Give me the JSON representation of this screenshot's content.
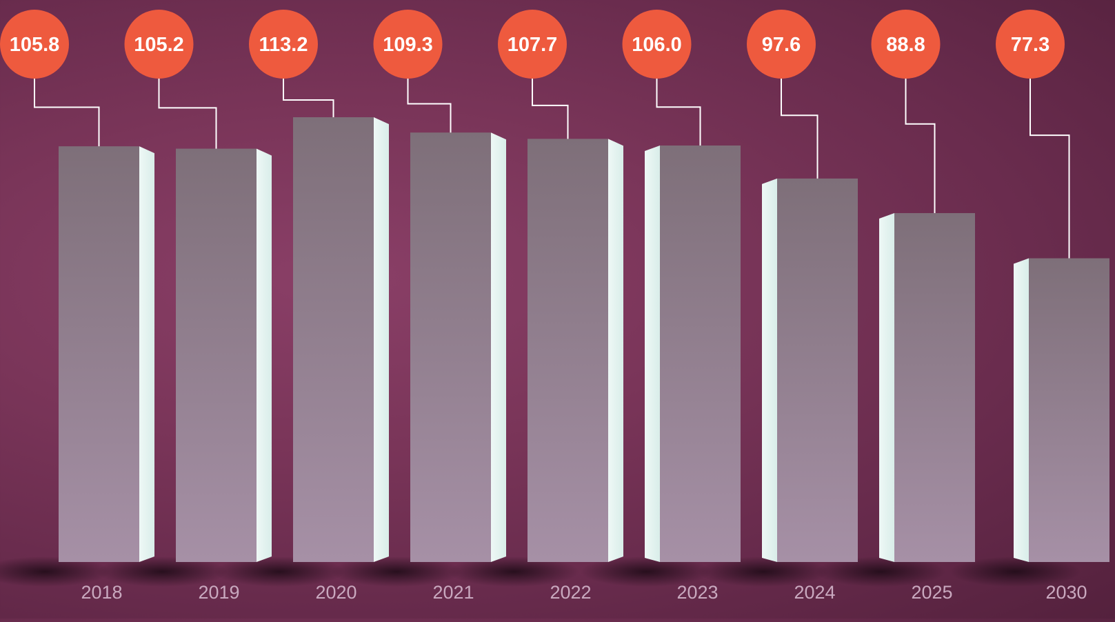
{
  "chart_data": {
    "type": "bar",
    "title": "",
    "xlabel": "",
    "ylabel": "",
    "categories": [
      "2018",
      "2019",
      "2020",
      "2021",
      "2022",
      "2023",
      "2024",
      "2025",
      "2030"
    ],
    "values": [
      105.8,
      105.2,
      113.2,
      109.3,
      107.7,
      106.0,
      97.6,
      88.8,
      77.3
    ],
    "value_labels": [
      "105.8",
      "105.2",
      "113.2",
      "109.3",
      "107.7",
      "106.0",
      "97.6",
      "88.8",
      "77.3"
    ],
    "ylim": [
      0,
      113.2
    ],
    "grid": false,
    "legend": "none",
    "colors": {
      "background": "#7a3559",
      "bar_top": "#7e6f79",
      "bar_bottom": "#a690a6",
      "bar_side": "#d9ede9",
      "label_circle": "#ee5a3e",
      "label_text": "#ffffff",
      "leader_line": "#ffffff",
      "tick_label": "#c9a9bf"
    }
  }
}
